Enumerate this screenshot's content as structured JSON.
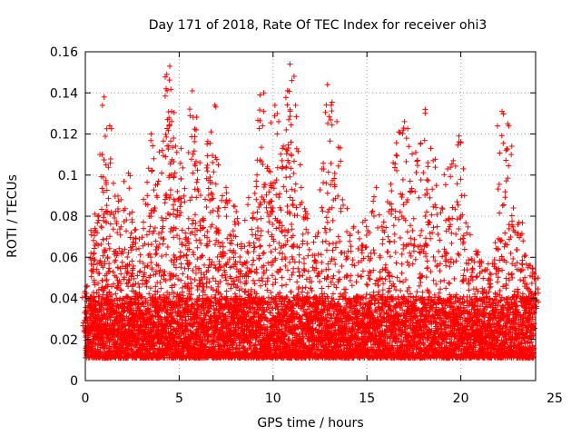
{
  "chart_data": {
    "type": "scatter",
    "title": "Day 171 of 2018, Rate Of TEC Index for receiver ohi3",
    "xlabel": "GPS time / hours",
    "ylabel": "ROTI / TECUs",
    "xlim": [
      0,
      24
    ],
    "ylim": [
      0,
      0.16
    ],
    "xticks": [
      0,
      5,
      10,
      15,
      20,
      25
    ],
    "xtick_labels": [
      "0",
      "5",
      "10",
      "15",
      "20",
      "25"
    ],
    "yticks": [
      0,
      0.02,
      0.04,
      0.06,
      0.08,
      0.1,
      0.12,
      0.14,
      0.16
    ],
    "ytick_labels": [
      "0",
      "0.02",
      "0.04",
      "0.06",
      "0.08",
      "0.1",
      "0.12",
      "0.14",
      "0.16"
    ],
    "grid": true,
    "marker": "+",
    "series_color": "#ff0000",
    "series": [
      {
        "name": "ROTI",
        "x": [
          0.1,
          0.3,
          0.5,
          0.7,
          0.9,
          1.0,
          1.1,
          1.3,
          1.5,
          1.7,
          1.9,
          2.1,
          2.3,
          2.5,
          2.7,
          2.9,
          3.1,
          3.3,
          3.5,
          3.7,
          3.9,
          4.1,
          4.3,
          4.5,
          4.6,
          4.7,
          4.9,
          5.1,
          5.3,
          5.5,
          5.7,
          5.9,
          6.1,
          6.3,
          6.5,
          6.7,
          6.9,
          7.1,
          7.3,
          7.5,
          7.7,
          7.9,
          8.1,
          8.3,
          8.5,
          8.7,
          8.9,
          9.1,
          9.3,
          9.5,
          9.7,
          9.9,
          10.1,
          10.3,
          10.5,
          10.7,
          10.9,
          11.0,
          11.2,
          11.5,
          11.8,
          12.1,
          12.4,
          12.7,
          12.9,
          13.1,
          13.4,
          13.7,
          14.0,
          14.3,
          14.6,
          14.9,
          15.2,
          15.5,
          15.8,
          16.1,
          16.4,
          16.7,
          17.0,
          17.3,
          17.6,
          17.9,
          18.1,
          18.4,
          18.7,
          19.0,
          19.3,
          19.6,
          19.9,
          20.2,
          20.5,
          20.8,
          21.1,
          21.4,
          21.7,
          22.0,
          22.2,
          22.5,
          22.8,
          23.1,
          23.4,
          23.7,
          23.9
        ],
        "y": [
          0.046,
          0.062,
          0.081,
          0.078,
          0.11,
          0.138,
          0.105,
          0.124,
          0.096,
          0.072,
          0.088,
          0.064,
          0.101,
          0.082,
          0.069,
          0.058,
          0.074,
          0.09,
          0.12,
          0.084,
          0.097,
          0.112,
          0.142,
          0.153,
          0.131,
          0.118,
          0.092,
          0.113,
          0.087,
          0.074,
          0.141,
          0.122,
          0.106,
          0.078,
          0.102,
          0.121,
          0.134,
          0.08,
          0.067,
          0.094,
          0.071,
          0.085,
          0.066,
          0.052,
          0.078,
          0.089,
          0.071,
          0.097,
          0.139,
          0.14,
          0.104,
          0.095,
          0.134,
          0.126,
          0.113,
          0.122,
          0.154,
          0.146,
          0.134,
          0.094,
          0.081,
          0.061,
          0.072,
          0.103,
          0.144,
          0.134,
          0.126,
          0.088,
          0.063,
          0.075,
          0.069,
          0.078,
          0.062,
          0.094,
          0.075,
          0.087,
          0.106,
          0.121,
          0.126,
          0.097,
          0.111,
          0.073,
          0.132,
          0.113,
          0.095,
          0.084,
          0.103,
          0.107,
          0.119,
          0.09,
          0.071,
          0.063,
          0.058,
          0.054,
          0.057,
          0.069,
          0.131,
          0.125,
          0.084,
          0.077,
          0.061,
          0.056,
          0.052
        ],
        "baseline_band": [
          0.005,
          0.035
        ]
      }
    ]
  }
}
